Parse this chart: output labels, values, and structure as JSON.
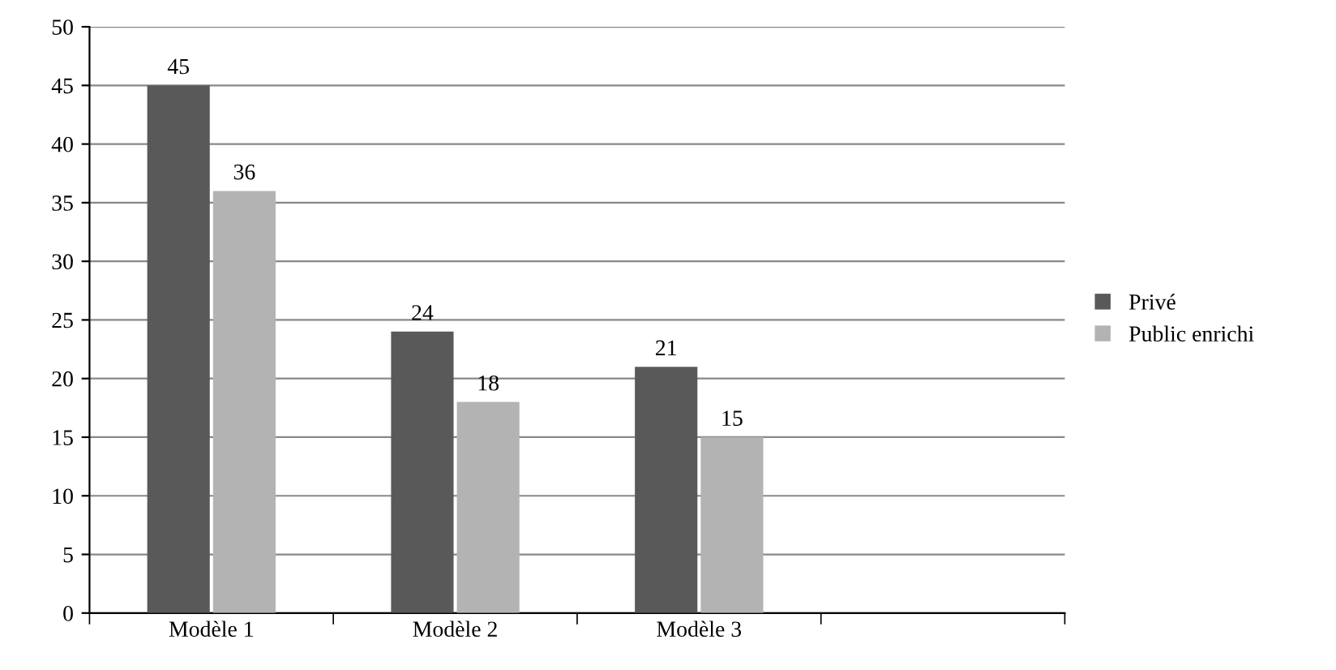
{
  "chart_data": {
    "type": "bar",
    "categories": [
      "Modèle 1",
      "Modèle 2",
      "Modèle 3",
      null
    ],
    "series": [
      {
        "name": "Privé",
        "color": "#595959",
        "values": [
          45,
          24,
          21,
          null
        ]
      },
      {
        "name": "Public enrichi",
        "color": "#b3b3b3",
        "values": [
          36,
          18,
          15,
          null
        ]
      }
    ],
    "ylim": [
      0,
      50
    ],
    "yticks": [
      0,
      5,
      10,
      15,
      20,
      25,
      30,
      35,
      40,
      45,
      50
    ],
    "grid": "y",
    "legend": "right",
    "data_labels": true
  }
}
